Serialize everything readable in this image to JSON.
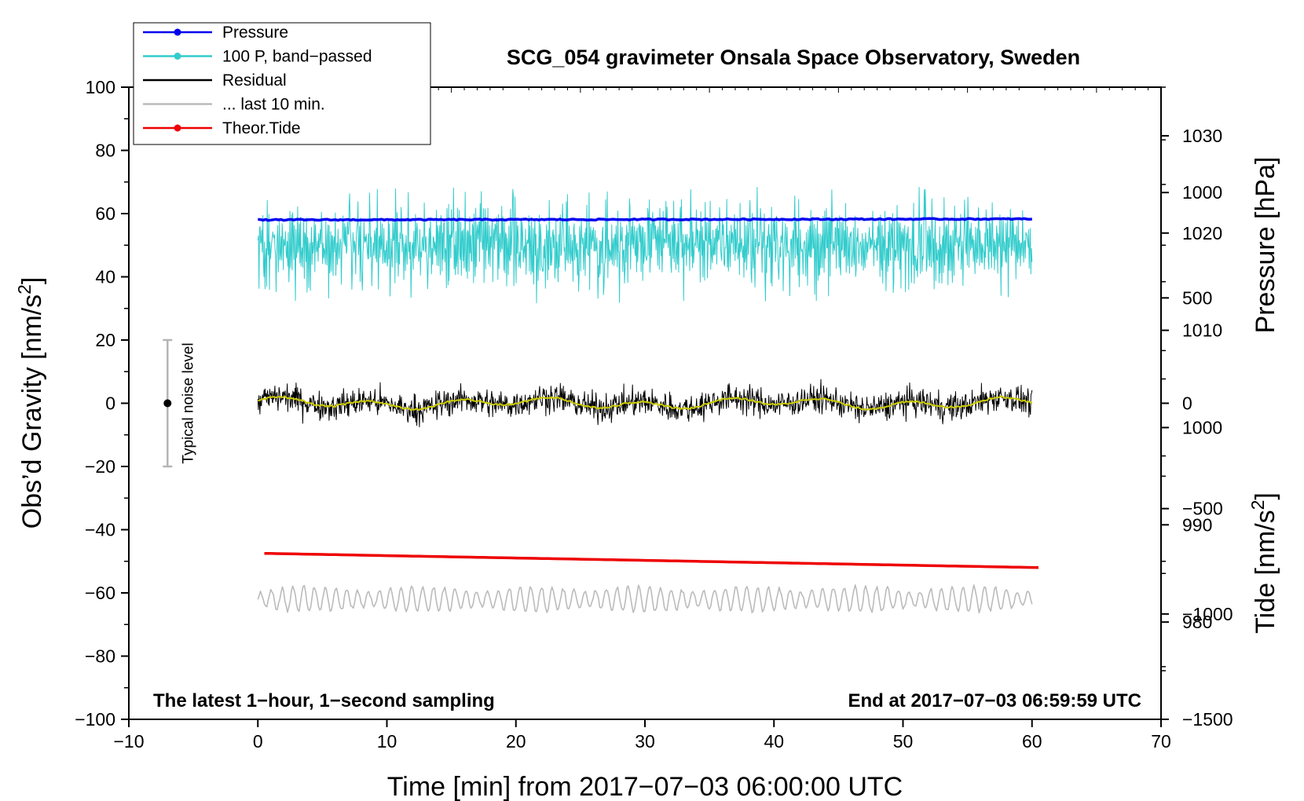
{
  "chart_data": {
    "type": "line",
    "title": "SCG_054 gravimeter Onsala Space Observatory, Sweden",
    "xlabel": "Time [min] from 2017−07−03 06:00:00 UTC",
    "ylabel_left": "Obs’d Gravity [nm/s",
    "ylabel_left_sup": "2",
    "ylabel_left_tail": "]",
    "ylabel_right_pressure": "Pressure [hPa]",
    "ylabel_right_tide": "Tide [nm/s",
    "ylabel_right_tide_sup": "2",
    "ylabel_right_tide_tail": "]",
    "xlim": [
      -10,
      70
    ],
    "ylim_left": [
      -100,
      100
    ],
    "ylim_pressure": [
      970,
      1035
    ],
    "ylim_tide": [
      -1500,
      1500
    ],
    "x_ticks": [
      -10,
      0,
      10,
      20,
      30,
      40,
      50,
      60,
      70
    ],
    "x_tick_labels": [
      "−10",
      "0",
      "10",
      "20",
      "30",
      "40",
      "50",
      "60",
      "70"
    ],
    "y_left_ticks": [
      -100,
      -80,
      -60,
      -40,
      -20,
      0,
      20,
      40,
      60,
      80,
      100
    ],
    "y_left_tick_labels": [
      "−100",
      "−80",
      "−60",
      "−40",
      "−20",
      "0",
      "20",
      "40",
      "60",
      "80",
      "100"
    ],
    "y_pressure_ticks": [
      980,
      990,
      1000,
      1010,
      1020,
      1030
    ],
    "y_pressure_tick_labels": [
      "980",
      "990",
      "1000",
      "1010",
      "1020",
      "1030"
    ],
    "y_tide_ticks": [
      1000,
      500,
      0,
      -500,
      -1000,
      -1500
    ],
    "y_tide_tick_labels": [
      "1000",
      "500",
      "0",
      "−500",
      "−1000",
      "−1500"
    ],
    "legend": [
      {
        "label": "Pressure",
        "color": "#0000ee",
        "marker": true
      },
      {
        "label": "100 P, band−passed",
        "color": "#33cccc",
        "marker": true
      },
      {
        "label": "Residual",
        "color": "#000000",
        "marker": false
      },
      {
        "label": "... last 10 min.",
        "color": "#bbbbbb",
        "marker": false
      },
      {
        "label": "Theor.Tide",
        "color": "#ee0000",
        "marker": true
      }
    ],
    "legend_position": "top-left",
    "series": [
      {
        "name": "Pressure",
        "axis": "left",
        "color": "#0000ee",
        "x": [
          0,
          60
        ],
        "y": [
          58,
          58.3
        ]
      },
      {
        "name": "100 P, band−passed",
        "axis": "left",
        "color": "#33cccc",
        "x_range": [
          0,
          60
        ],
        "center": 50,
        "amplitude": 8,
        "min": 27,
        "max": 71
      },
      {
        "name": "Residual",
        "axis": "left",
        "color": "#000000",
        "x_range": [
          0,
          60
        ],
        "center": 0,
        "amplitude": 3,
        "min": -8,
        "max": 8
      },
      {
        "name": "Residual smoothed",
        "axis": "left",
        "color": "#cccc00",
        "x_range": [
          0,
          60
        ],
        "center": 0,
        "amplitude": 1.5
      },
      {
        "name": "... last 10 min.",
        "axis": "left",
        "color": "#bbbbbb",
        "x_range": [
          0,
          60
        ],
        "center": -62,
        "amplitude": 4
      },
      {
        "name": "Theor.Tide",
        "axis": "left",
        "color": "#ee0000",
        "x": [
          0.5,
          60.5
        ],
        "y": [
          -47.5,
          -52
        ]
      }
    ],
    "noise_bar": {
      "x": -7,
      "y_center": 0,
      "y_low": -20,
      "y_high": 20,
      "label": "Typical noise level"
    },
    "annotation_left": "The latest 1−hour, 1−second sampling",
    "annotation_right": "End at 2017−07−03 06:59:59 UTC"
  }
}
